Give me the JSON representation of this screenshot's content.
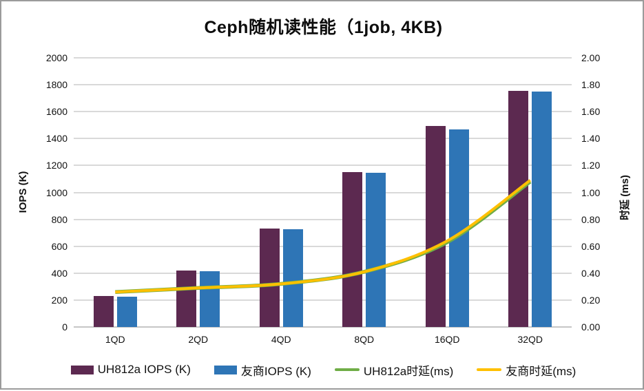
{
  "title": "Ceph随机读性能（1job, 4KB)",
  "axes": {
    "left": {
      "title": "IOPS (K)",
      "ticks": [
        "2000",
        "1800",
        "1600",
        "1400",
        "1200",
        "1000",
        "800",
        "600",
        "400",
        "200",
        "0"
      ]
    },
    "right": {
      "title": "时延 (ms)",
      "ticks": [
        "2.00",
        "1.80",
        "1.60",
        "1.40",
        "1.20",
        "1.00",
        "0.80",
        "0.60",
        "0.40",
        "0.20",
        "0.00"
      ]
    }
  },
  "chart_data": {
    "type": "bar",
    "subtype": "combo-bar-line-dual-axis",
    "title": "Ceph随机读性能（1job, 4KB)",
    "categories": [
      "1QD",
      "2QD",
      "4QD",
      "8QD",
      "16QD",
      "32QD"
    ],
    "series": [
      {
        "name": "UH812a IOPS (K)",
        "type": "bar",
        "axis": "left",
        "color": "#5c2950",
        "values": [
          230,
          420,
          730,
          1150,
          1495,
          1755
        ]
      },
      {
        "name": "友商IOPS (K)",
        "type": "bar",
        "axis": "left",
        "color": "#2e75b6",
        "values": [
          225,
          413,
          725,
          1148,
          1468,
          1750
        ]
      },
      {
        "name": "UH812a时延(ms)",
        "type": "line",
        "axis": "right",
        "color": "#70ad47",
        "values": [
          0.26,
          0.29,
          0.32,
          0.41,
          0.63,
          1.08
        ]
      },
      {
        "name": "友商时延(ms)",
        "type": "line",
        "axis": "right",
        "color": "#ffc000",
        "values": [
          0.26,
          0.29,
          0.32,
          0.41,
          0.64,
          1.09
        ]
      }
    ],
    "xlabel": "",
    "ylabel_left": "IOPS (K)",
    "ylabel_right": "时延 (ms)",
    "ylim_left": [
      0,
      2000
    ],
    "ylim_right": [
      0.0,
      2.0
    ],
    "ytick_step_left": 200,
    "ytick_step_right": 0.2,
    "grid": "horizontal",
    "legend_position": "bottom"
  },
  "colors": {
    "gridline": "#d9d9d9",
    "frame_border": "#9b9b9b",
    "background": "#ffffff"
  }
}
